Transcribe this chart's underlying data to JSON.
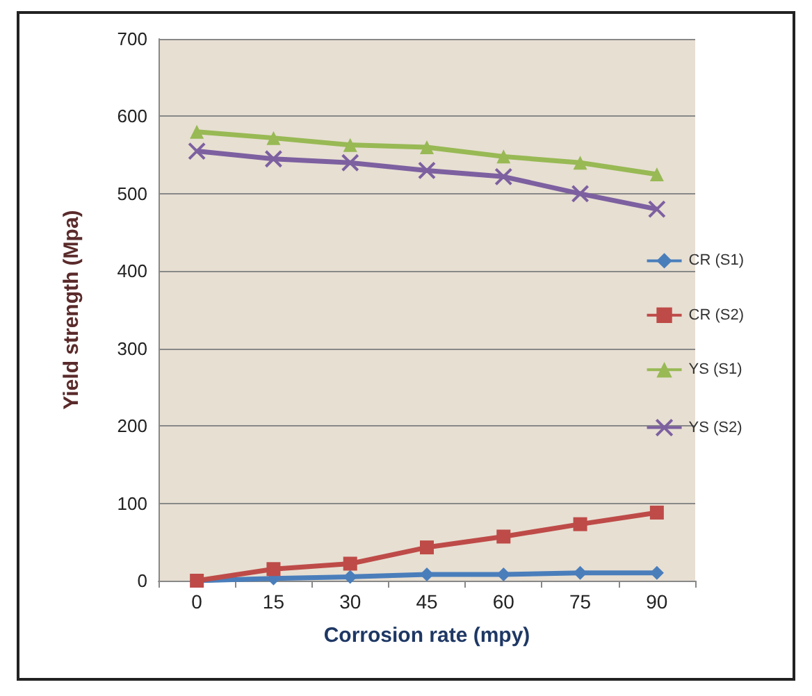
{
  "chart_data": {
    "type": "line",
    "xlabel": "Corrosion rate (mpy)",
    "ylabel": "Yield strength (Mpa)",
    "categories": [
      "0",
      "15",
      "30",
      "45",
      "60",
      "75",
      "90"
    ],
    "series": [
      {
        "name": "CR (S1)",
        "color": "#4a7ebb",
        "marker": "diamond",
        "values": [
          0,
          3,
          5,
          8,
          8,
          10,
          10
        ]
      },
      {
        "name": "CR (S2)",
        "color": "#be4b48",
        "marker": "square",
        "values": [
          0,
          15,
          22,
          43,
          57,
          73,
          88
        ]
      },
      {
        "name": "YS (S1)",
        "color": "#98b954",
        "marker": "triangle",
        "values": [
          580,
          572,
          563,
          560,
          548,
          540,
          525
        ]
      },
      {
        "name": "YS (S2)",
        "color": "#7d60a0",
        "marker": "cross",
        "values": [
          555,
          545,
          540,
          530,
          522,
          500,
          480
        ]
      }
    ],
    "ylim": [
      0,
      700
    ],
    "yticks": [
      0,
      100,
      200,
      300,
      400,
      500,
      600,
      700
    ],
    "grid": "y",
    "legend": "right"
  }
}
